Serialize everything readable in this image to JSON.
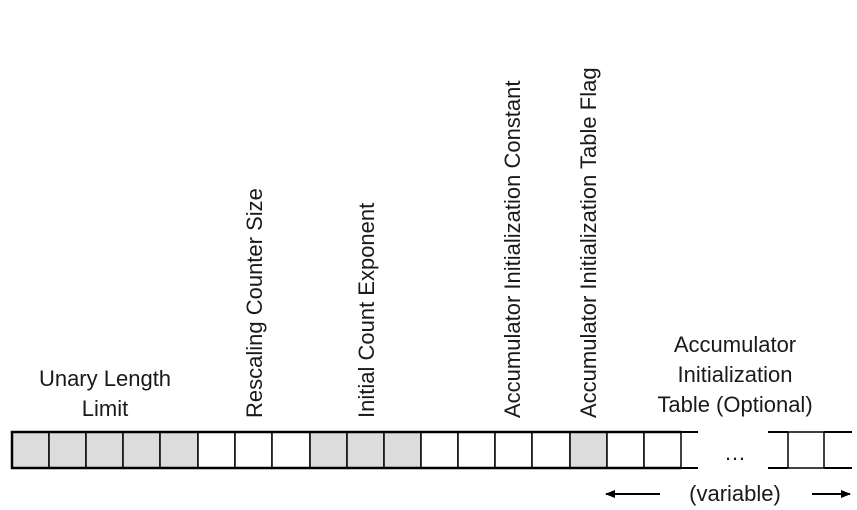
{
  "labels": {
    "unary_length_limit": [
      "Unary Length",
      "Limit"
    ],
    "rescaling_counter_size": "Rescaling Counter Size",
    "initial_count_exponent": "Initial Count Exponent",
    "accumulator_initialization_constant": "Accumulator Initialization Constant",
    "accumulator_initialization_table_flag": "Accumulator Initialization Table Flag",
    "accumulator_initialization_table": [
      "Accumulator",
      "Initialization",
      "Table (Optional)"
    ],
    "ellipsis": "…",
    "variable": "(variable)"
  },
  "fields": [
    {
      "name": "unary-length-limit",
      "bits": 5,
      "fill": "#dcdcdc"
    },
    {
      "name": "rescaling-counter-size",
      "bits": 3,
      "fill": "#ffffff"
    },
    {
      "name": "initial-count-exponent",
      "bits": 3,
      "fill": "#dcdcdc"
    },
    {
      "name": "accumulator-initialization-constant",
      "bits": 4,
      "fill": "#ffffff"
    },
    {
      "name": "accumulator-initialization-table-flag",
      "bits": 1,
      "fill": "#dcdcdc"
    },
    {
      "name": "accumulator-initialization-table",
      "bits": "variable",
      "fill": "#ffffff"
    }
  ]
}
